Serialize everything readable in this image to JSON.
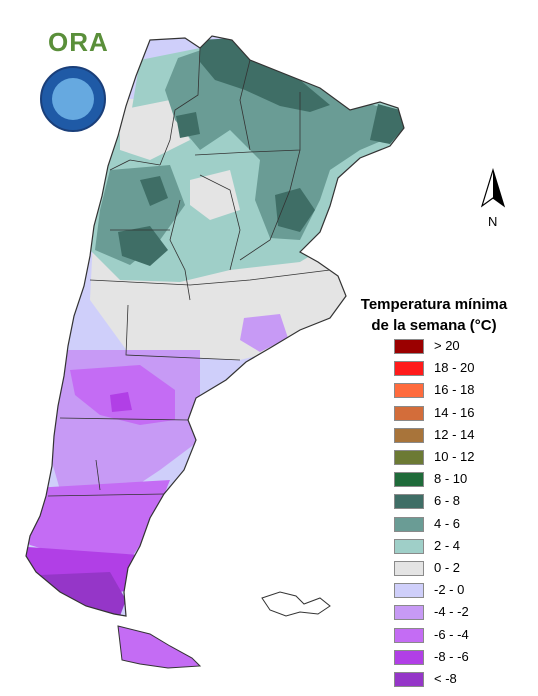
{
  "logo": {
    "text": "ORA",
    "seal_name": "seal-logo"
  },
  "north_label": "N",
  "legend": {
    "title_line1": "Temperatura mínima",
    "title_line2": "de la semana (°C)",
    "items": [
      {
        "label": "> 20",
        "color": "#9b0000"
      },
      {
        "label": "18 - 20",
        "color": "#ff1a1a"
      },
      {
        "label": "16 - 18",
        "color": "#ff6b3d"
      },
      {
        "label": "14 - 16",
        "color": "#d36d3a"
      },
      {
        "label": "12 - 14",
        "color": "#a8743a"
      },
      {
        "label": "10 - 12",
        "color": "#6c7a34"
      },
      {
        "label": "8 - 10",
        "color": "#1f6b3a"
      },
      {
        "label": "6 - 8",
        "color": "#3f6e66"
      },
      {
        "label": "4 - 6",
        "color": "#6a9c95"
      },
      {
        "label": "2 - 4",
        "color": "#9fcfc8"
      },
      {
        "label": "0 - 2",
        "color": "#e4e4e4"
      },
      {
        "label": "-2 - 0",
        "color": "#cfcffa"
      },
      {
        "label": "-4 - -2",
        "color": "#c79af5"
      },
      {
        "label": "-6 - -4",
        "color": "#c46cf4"
      },
      {
        "label": "-8 - -6",
        "color": "#b13fe6"
      },
      {
        "label": "< -8",
        "color": "#9536c8"
      }
    ]
  },
  "colors": {
    "zone_6_8": "#3f6e66",
    "zone_4_6": "#6a9c95",
    "zone_2_4": "#9fcfc8",
    "zone_0_2": "#e4e4e4",
    "zone_m2_0": "#cfcffa",
    "zone_m4_m2": "#c79af5",
    "zone_m6_m4": "#c46cf4",
    "zone_m8_m6": "#b13fe6",
    "zone_lt_m8": "#9536c8",
    "border": "#333333"
  }
}
